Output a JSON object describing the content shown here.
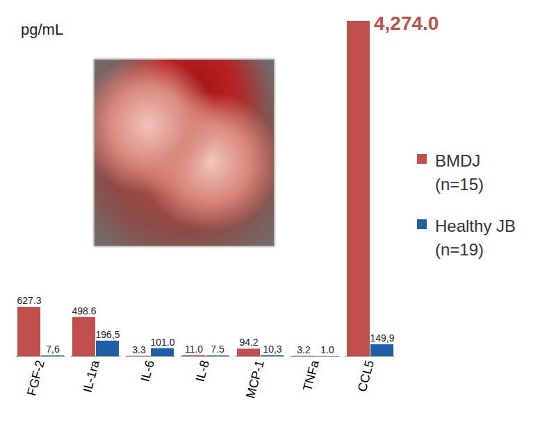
{
  "chart_data": {
    "type": "bar",
    "y_label": "pg/mL",
    "categories": [
      "FGF-2",
      "IL-1ra",
      "IL-6",
      "IL-8",
      "MCP-1",
      "TNFa",
      "CCL5"
    ],
    "series": [
      {
        "name": "BMDJ (n=15)",
        "color": "#c0504d",
        "values": [
          627.3,
          498.6,
          3.3,
          11.0,
          94.2,
          3.2,
          4274.0
        ],
        "value_labels": [
          "627.3",
          "498.6",
          "3.3",
          "11.0",
          "94.2",
          "3.2",
          "4,274.0"
        ]
      },
      {
        "name": "Healthy JB (n=19)",
        "color": "#1f5fa8",
        "values": [
          7.6,
          196.5,
          101.0,
          7.5,
          10.3,
          1.0,
          149.9
        ],
        "value_labels": [
          "7,6",
          "196,5",
          "101.0",
          "7.5",
          "10,3",
          "1.0",
          "149,9"
        ]
      }
    ],
    "ylim": [
      0,
      4274
    ],
    "data_labels": true,
    "tick_labels": "x",
    "legend": "right"
  }
}
